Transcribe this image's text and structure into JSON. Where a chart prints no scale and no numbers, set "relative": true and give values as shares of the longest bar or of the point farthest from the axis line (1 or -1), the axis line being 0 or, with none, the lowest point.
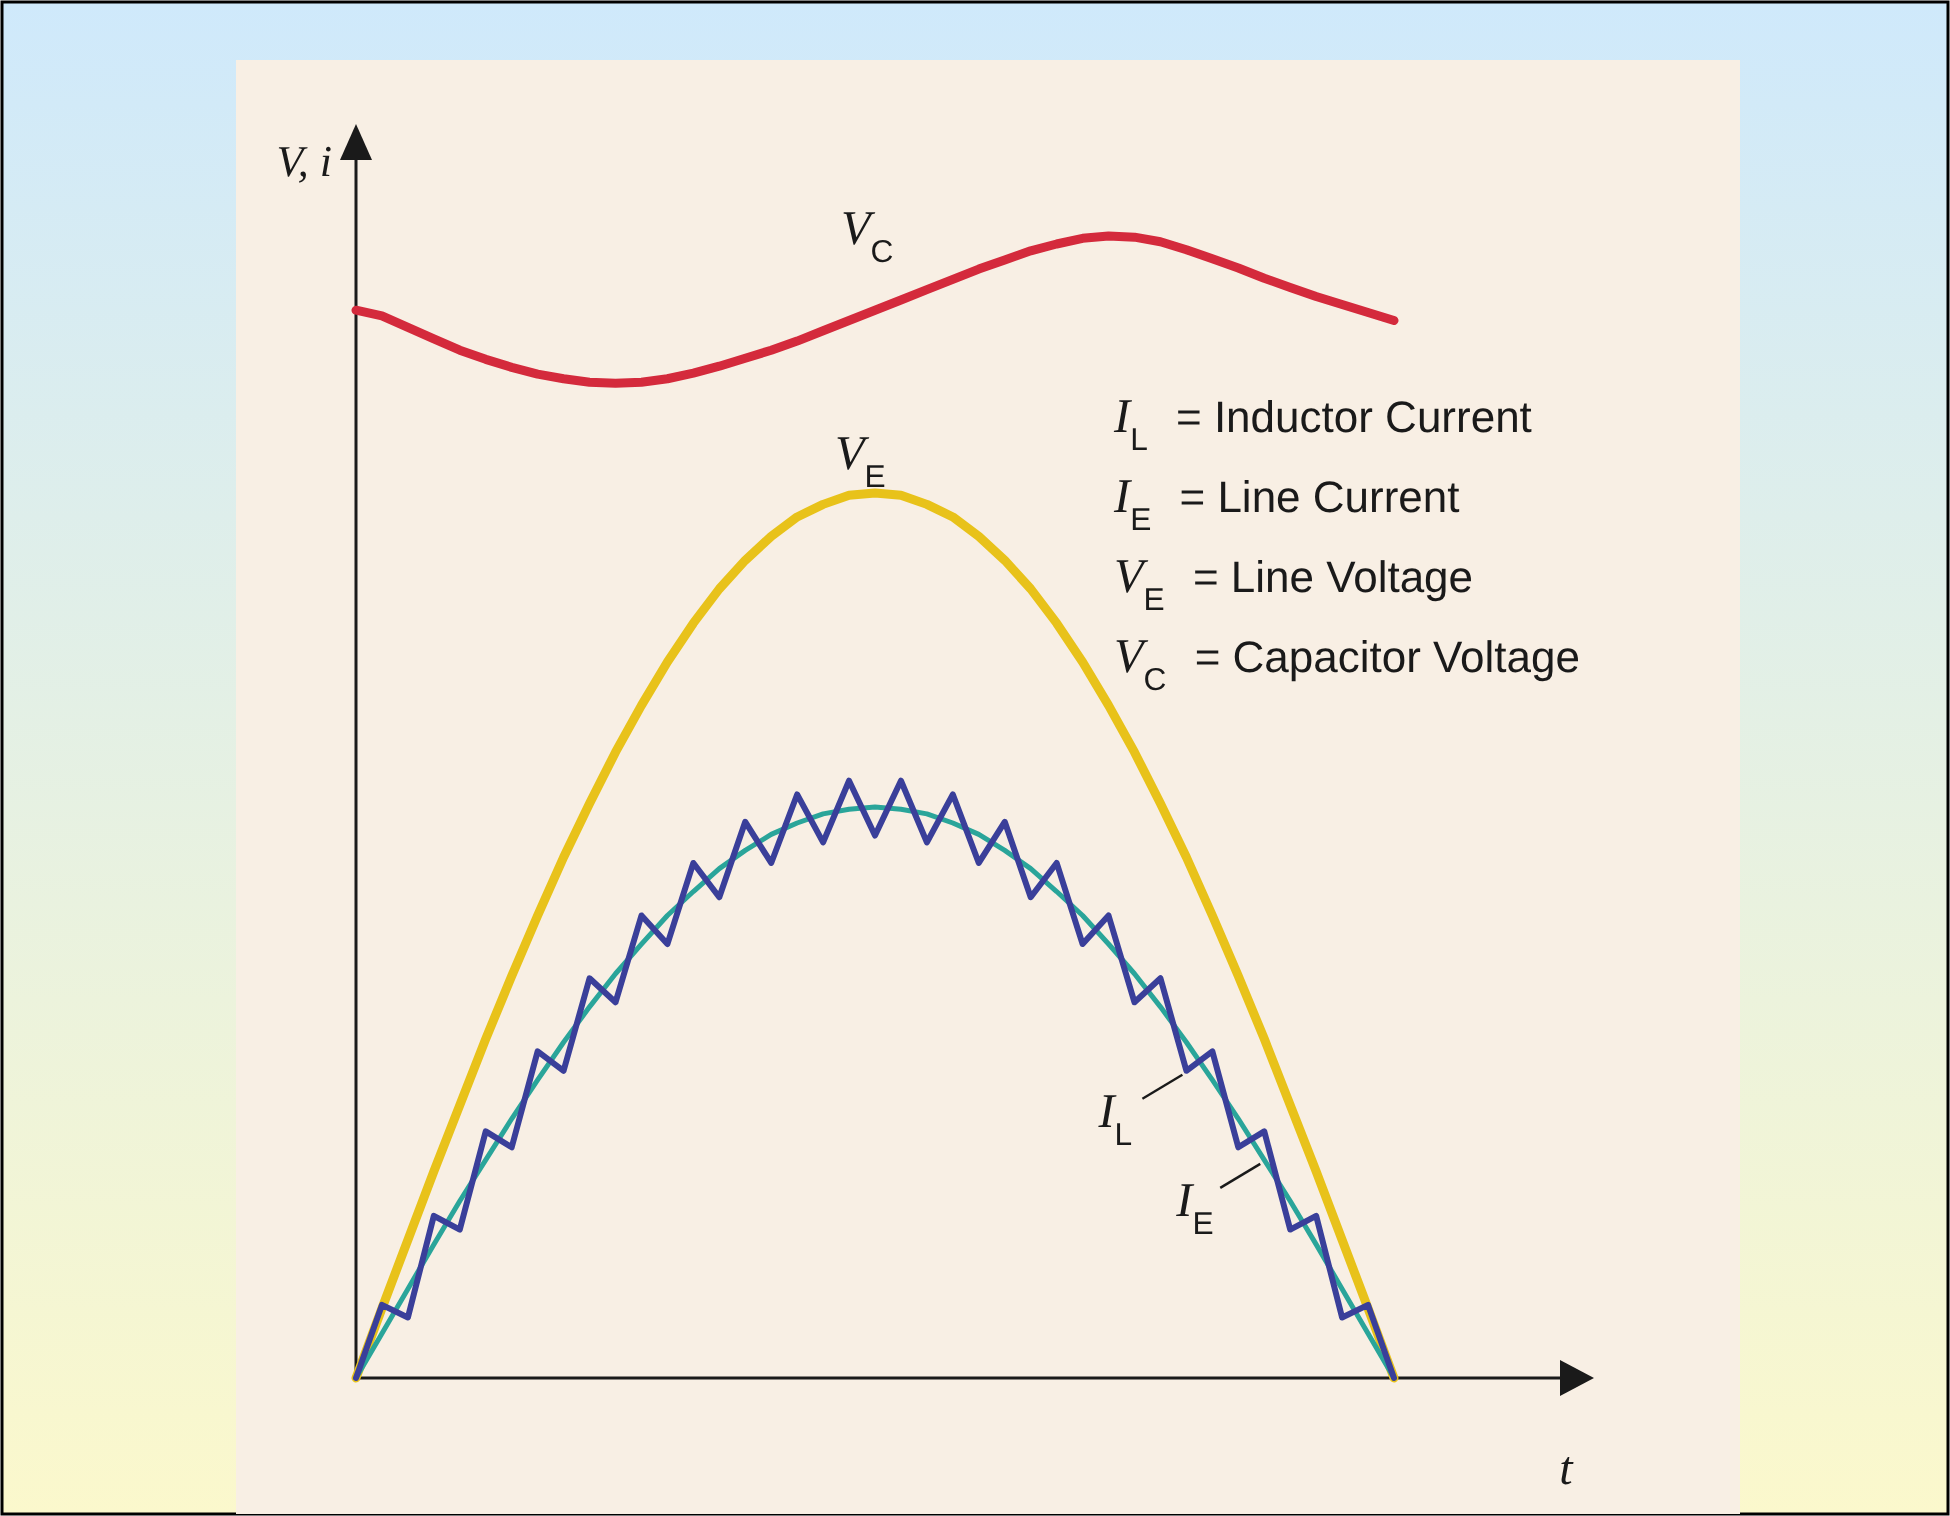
{
  "chart_data": {
    "type": "line",
    "relative": true,
    "xlabel": "t",
    "ylabel": "V, i",
    "categories": [
      null,
      null,
      null,
      null,
      null,
      null,
      null,
      null,
      null,
      null,
      null,
      null,
      null,
      null,
      null,
      null,
      null,
      null,
      null,
      null,
      null,
      null,
      null,
      null,
      null,
      null,
      null,
      null,
      null,
      null,
      null,
      null,
      null,
      null,
      null,
      null,
      null,
      null,
      null,
      null,
      null
    ],
    "series": [
      {
        "name": "V$_{C}$",
        "color": "#d42a3c",
        "values": [
          0.935,
          0.93,
          0.92,
          0.91,
          0.9,
          0.892,
          0.885,
          0.879,
          0.875,
          0.872,
          0.871,
          0.872,
          0.875,
          0.88,
          0.886,
          0.893,
          0.9,
          0.908,
          0.917,
          0.926,
          0.935,
          0.944,
          0.953,
          0.962,
          0.971,
          0.979,
          0.987,
          0.993,
          0.998,
          1,
          0.999,
          0.995,
          0.988,
          0.98,
          0.972,
          0.963,
          0.955,
          0.947,
          0.94,
          0.933,
          0.926
        ]
      },
      {
        "name": "V$_{E}$",
        "color": "#e8c21a",
        "values": [
          0,
          0.061,
          0.121,
          0.181,
          0.239,
          0.297,
          0.352,
          0.405,
          0.456,
          0.503,
          0.548,
          0.589,
          0.627,
          0.661,
          0.691,
          0.716,
          0.737,
          0.754,
          0.765,
          0.773,
          0.775,
          0.773,
          0.765,
          0.754,
          0.737,
          0.716,
          0.691,
          0.661,
          0.627,
          0.589,
          0.548,
          0.503,
          0.456,
          0.405,
          0.352,
          0.297,
          0.239,
          0.181,
          0.121,
          0.061,
          0
        ]
      },
      {
        "name": "I$_{E}$",
        "color": "#2aa59a",
        "values": [
          0,
          0.039,
          0.078,
          0.117,
          0.155,
          0.191,
          0.227,
          0.261,
          0.294,
          0.325,
          0.354,
          0.38,
          0.405,
          0.426,
          0.446,
          0.462,
          0.476,
          0.486,
          0.494,
          0.498,
          0.5,
          0.498,
          0.494,
          0.486,
          0.476,
          0.462,
          0.446,
          0.426,
          0.405,
          0.38,
          0.354,
          0.325,
          0.294,
          0.261,
          0.227,
          0.191,
          0.155,
          0.117,
          0.078,
          0.039,
          0
        ]
      },
      {
        "name": "I$_{L}$",
        "color": "#3a3f9a",
        "values": [
          0,
          0.064,
          0.053,
          0.142,
          0.13,
          0.216,
          0.202,
          0.286,
          0.269,
          0.35,
          0.329,
          0.405,
          0.38,
          0.451,
          0.421,
          0.487,
          0.451,
          0.511,
          0.469,
          0.523,
          0.475,
          0.523,
          0.469,
          0.511,
          0.451,
          0.487,
          0.421,
          0.451,
          0.38,
          0.405,
          0.329,
          0.35,
          0.269,
          0.286,
          0.202,
          0.216,
          0.13,
          0.142,
          0.053,
          0.064,
          0
        ]
      }
    ],
    "annotations": [
      "I$_{L}$ = Inductor Current",
      "I$_{E}$ = Line Current",
      "V$_{E}$ = Line Voltage",
      "V$_{C}$ = Capacitor Voltage"
    ]
  }
}
